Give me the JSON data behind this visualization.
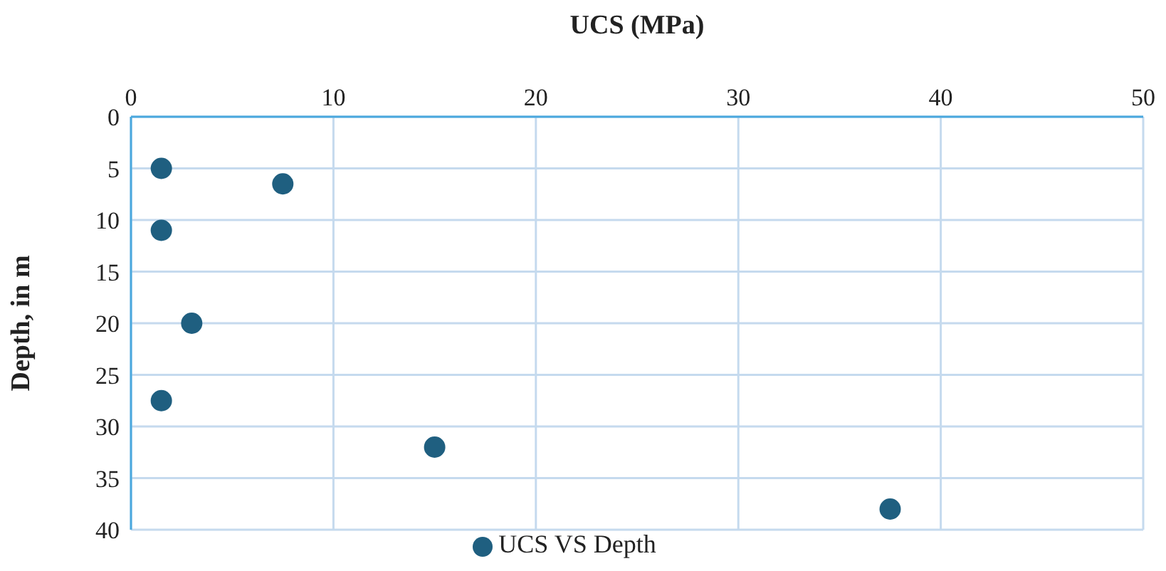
{
  "chart_data": {
    "type": "scatter",
    "xlabel": "UCS (MPa)",
    "ylabel": "Depth, in m",
    "x": [
      1.5,
      7.5,
      1.5,
      3,
      1.5,
      15,
      37.5
    ],
    "series": [
      {
        "name": "UCS VS Depth",
        "color": "#1f5f80",
        "values": [
          5,
          6.5,
          11,
          20,
          27.5,
          32,
          38
        ]
      }
    ],
    "xlim": [
      0,
      50
    ],
    "xticks": [
      0,
      10,
      20,
      30,
      40,
      50
    ],
    "ylim": [
      40,
      0
    ],
    "yticks": [
      0,
      5,
      10,
      15,
      20,
      25,
      30,
      35,
      40
    ],
    "grid": true,
    "legend": "bottom",
    "marker": "circle"
  }
}
